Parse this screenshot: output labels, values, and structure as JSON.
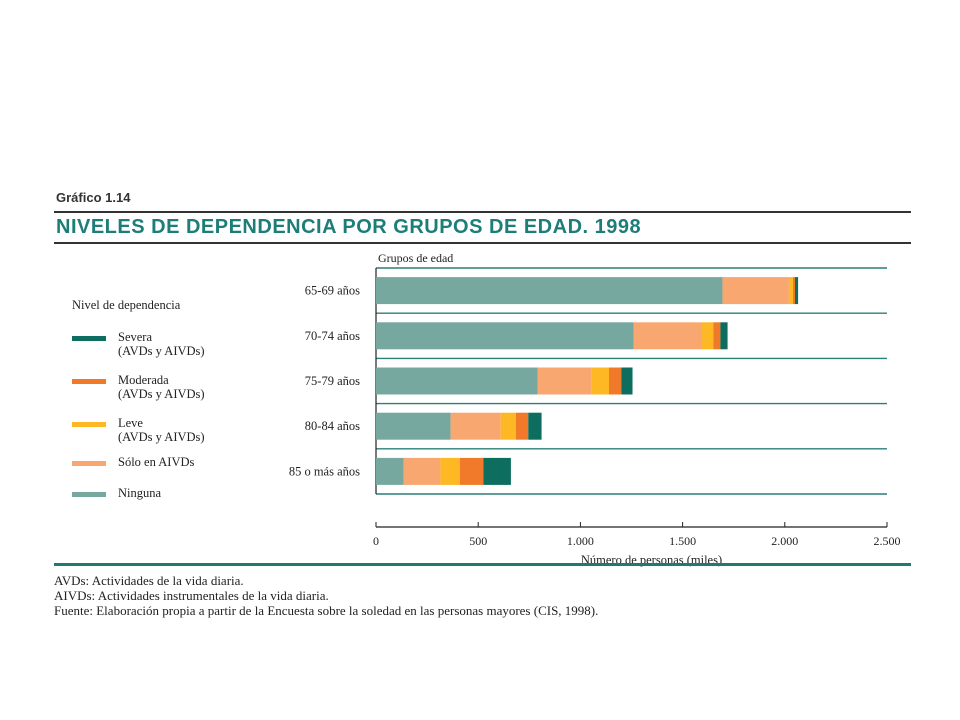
{
  "figure_label": "Gráfico 1.14",
  "chart_data": {
    "type": "bar",
    "orientation": "horizontal",
    "stacked": true,
    "title": "NIVELES DE DEPENDENCIA POR GRUPOS DE EDAD. 1998",
    "categories_label": "Grupos de edad",
    "xlabel": "Número de personas (miles)",
    "categories": [
      "65-69 años",
      "70-74 años",
      "75-79 años",
      "80-84 años",
      "85 o más años"
    ],
    "xlim": [
      0,
      2500
    ],
    "xticks": [
      0,
      500,
      1000,
      1500,
      2000,
      2500
    ],
    "xtick_labels": [
      "0",
      "500",
      "1.000",
      "1.500",
      "2.000",
      "2.500"
    ],
    "legend_title": "Nivel de dependencia",
    "legend_placement": "left",
    "series": [
      {
        "name": "Ninguna",
        "color": "#76a89f",
        "values": [
          1695,
          1260,
          790,
          365,
          135
        ]
      },
      {
        "name": "Sólo en AIVDs",
        "color": "#f9a770",
        "values": [
          325,
          335,
          265,
          245,
          180
        ]
      },
      {
        "name": "Leve\n(AVDs y AIVDs)",
        "color": "#fdb824",
        "values": [
          20,
          55,
          85,
          75,
          95
        ]
      },
      {
        "name": "Moderada\n(AVDs y AIVDs)",
        "color": "#f0792a",
        "values": [
          10,
          35,
          60,
          60,
          115
        ]
      },
      {
        "name": "Severa\n(AVDs y AIVDs)",
        "color": "#0d6e5f",
        "values": [
          15,
          35,
          55,
          65,
          135
        ]
      }
    ]
  },
  "legend_order": [
    4,
    3,
    2,
    1,
    0
  ],
  "notes": [
    "AVDs: Actividades de la vida diaria.",
    "AIVDs: Actividades instrumentales de la vida diaria.",
    "Fuente: Elaboración propia a partir de la Encuesta sobre la soledad en las personas mayores (CIS, 1998)."
  ]
}
